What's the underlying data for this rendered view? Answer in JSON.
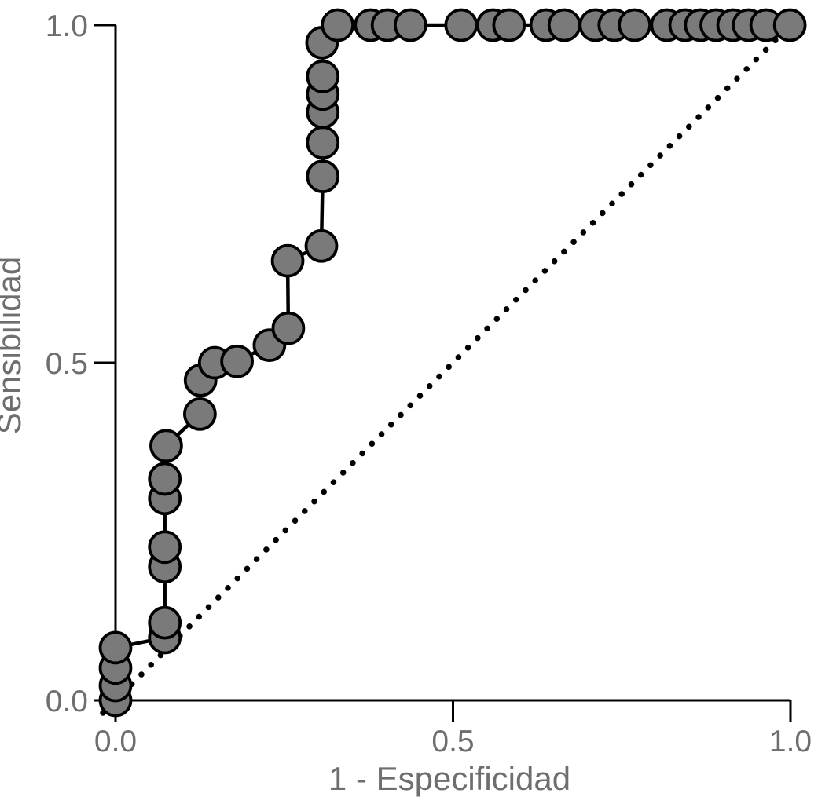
{
  "figure": {
    "background_color": "#ffffff",
    "axis_text_color": "#6e6e6e",
    "axis_line_color": "#000000"
  },
  "chart_data": {
    "type": "line",
    "subtype": "roc-curve",
    "title": "",
    "xlabel": "1 - Especificidad",
    "ylabel": "Sensibilidad",
    "xlim": [
      0,
      1
    ],
    "ylim": [
      0,
      1
    ],
    "grid": false,
    "legend": "none",
    "x_ticks": {
      "values": [
        0.0,
        0.5,
        1.0
      ],
      "labels": [
        "0.0",
        "0.5",
        "1.0"
      ]
    },
    "y_ticks": {
      "values": [
        0.0,
        0.5,
        1.0
      ],
      "labels": [
        "0.0",
        "0.5",
        "1.0"
      ]
    },
    "series": [
      {
        "name": "ROC curve",
        "style": "line-with-markers",
        "line_color": "#000000",
        "marker_shape": "circle",
        "marker_fill": "#7a7a7a",
        "marker_stroke": "#000000",
        "points": [
          [
            0.0,
            0.0
          ],
          [
            0.0,
            0.022
          ],
          [
            0.0,
            0.048
          ],
          [
            0.0,
            0.078
          ],
          [
            0.073,
            0.093
          ],
          [
            0.073,
            0.115
          ],
          [
            0.073,
            0.198
          ],
          [
            0.073,
            0.227
          ],
          [
            0.073,
            0.299
          ],
          [
            0.073,
            0.328
          ],
          [
            0.075,
            0.377
          ],
          [
            0.125,
            0.424
          ],
          [
            0.126,
            0.474
          ],
          [
            0.147,
            0.5
          ],
          [
            0.18,
            0.502
          ],
          [
            0.228,
            0.526
          ],
          [
            0.256,
            0.551
          ],
          [
            0.255,
            0.651
          ],
          [
            0.305,
            0.673
          ],
          [
            0.307,
            0.776
          ],
          [
            0.307,
            0.826
          ],
          [
            0.307,
            0.871
          ],
          [
            0.307,
            0.898
          ],
          [
            0.307,
            0.924
          ],
          [
            0.306,
            0.974
          ],
          [
            0.329,
            1.0
          ],
          [
            0.378,
            1.0
          ],
          [
            0.403,
            1.0
          ],
          [
            0.437,
            1.0
          ],
          [
            0.512,
            1.0
          ],
          [
            0.559,
            1.0
          ],
          [
            0.583,
            1.0
          ],
          [
            0.638,
            1.0
          ],
          [
            0.665,
            1.0
          ],
          [
            0.711,
            1.0
          ],
          [
            0.739,
            1.0
          ],
          [
            0.769,
            1.0
          ],
          [
            0.817,
            1.0
          ],
          [
            0.844,
            1.0
          ],
          [
            0.867,
            1.0
          ],
          [
            0.89,
            1.0
          ],
          [
            0.915,
            1.0
          ],
          [
            0.938,
            1.0
          ],
          [
            0.964,
            1.0
          ],
          [
            0.999,
            1.0
          ]
        ]
      }
    ],
    "reference_line": {
      "name": "chance diagonal",
      "style": "dotted",
      "color": "#000000",
      "from": [
        0,
        0
      ],
      "to": [
        1,
        1
      ]
    }
  }
}
